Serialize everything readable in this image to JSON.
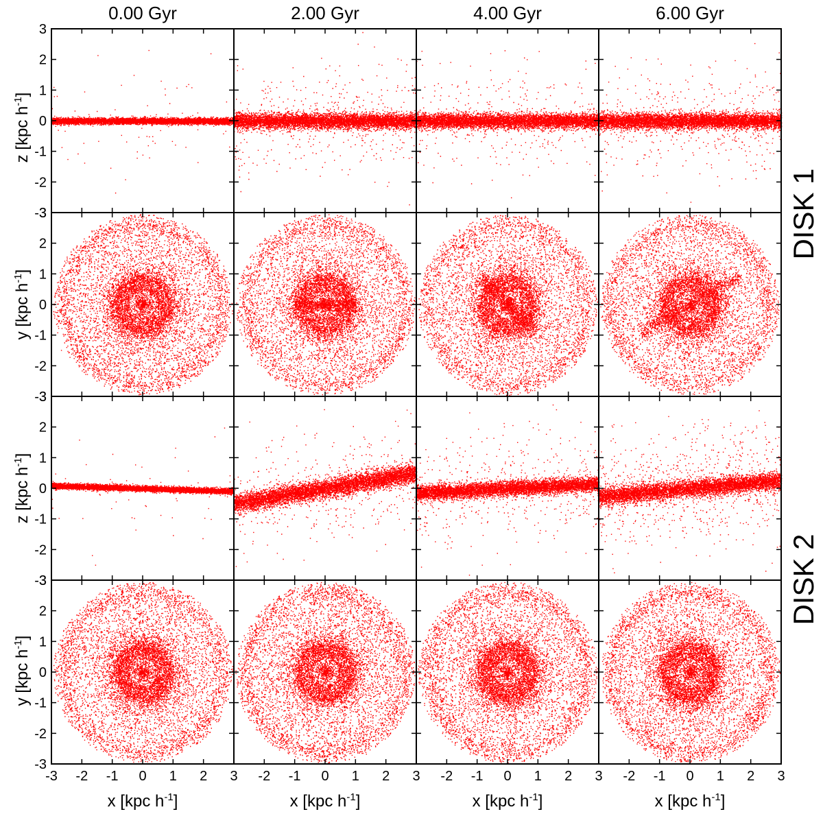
{
  "chart_data": {
    "type": "scatter",
    "description_columns": [
      "0.00 Gyr",
      "2.00 Gyr",
      "4.00 Gyr",
      "6.00 Gyr"
    ],
    "rows": [
      {
        "disk": "DISK 1",
        "projection": "edge-on",
        "ylabel": "z [kpc h",
        "ylabel_sup": "-1",
        "ylabel_end": "]"
      },
      {
        "disk": "DISK 1",
        "projection": "face-on",
        "ylabel": "y [kpc h",
        "ylabel_sup": "-1",
        "ylabel_end": "]"
      },
      {
        "disk": "DISK 2",
        "projection": "edge-on",
        "ylabel": "z [kpc h",
        "ylabel_sup": "-1",
        "ylabel_end": "]"
      },
      {
        "disk": "DISK 2",
        "projection": "face-on",
        "ylabel": "y [kpc h",
        "ylabel_sup": "-1",
        "ylabel_end": "]"
      }
    ],
    "xlabel": "x [kpc h",
    "xlabel_sup": "-1",
    "xlabel_end": "]",
    "xlim": [
      -3,
      3
    ],
    "ylim": [
      -3,
      3
    ],
    "tick_labels": [
      "-3",
      "-2",
      "-1",
      "0",
      "1",
      "2",
      "3"
    ],
    "disk_labels": [
      "DISK 1",
      "DISK 2"
    ],
    "marker_color": "#ff0000",
    "panels": {
      "disk1_edge": [
        {
          "thickness": 0.09,
          "tilt": 0.0,
          "scatter": 0.01
        },
        {
          "thickness": 0.22,
          "tilt": 0.0,
          "scatter": 0.06
        },
        {
          "thickness": 0.22,
          "tilt": 0.0,
          "scatter": 0.05
        },
        {
          "thickness": 0.23,
          "tilt": 0.0,
          "scatter": 0.06
        }
      ],
      "disk1_face": [
        {
          "bar_length": 0.0,
          "bar_angle_deg": 0
        },
        {
          "bar_length": 1.0,
          "bar_angle_deg": 0
        },
        {
          "bar_length": 1.3,
          "bar_angle_deg": -45
        },
        {
          "bar_length": 1.9,
          "bar_angle_deg": 30
        }
      ],
      "disk2_edge": [
        {
          "thickness": 0.08,
          "tilt": -0.03,
          "scatter": 0.01
        },
        {
          "thickness": 0.28,
          "tilt": 0.17,
          "scatter": 0.06
        },
        {
          "thickness": 0.22,
          "tilt": 0.05,
          "scatter": 0.07
        },
        {
          "thickness": 0.25,
          "tilt": 0.09,
          "scatter": 0.12
        }
      ],
      "disk2_face": [
        {
          "bar_length": 0.0,
          "bar_angle_deg": 0
        },
        {
          "bar_length": 0.0,
          "bar_angle_deg": 0
        },
        {
          "bar_length": 0.0,
          "bar_angle_deg": 0
        },
        {
          "bar_length": 0.0,
          "bar_angle_deg": 0
        }
      ]
    }
  }
}
